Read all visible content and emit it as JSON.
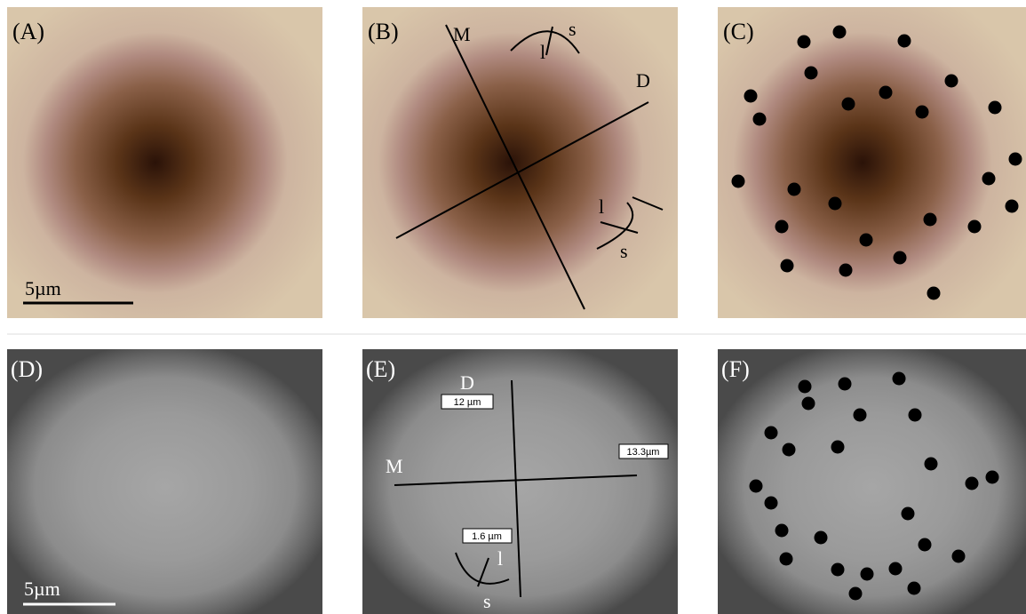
{
  "panels": [
    {
      "label": "(A)",
      "scale_bar": "5µm"
    },
    {
      "label": "(B)",
      "annotations": [
        "M",
        "D",
        "l",
        "s",
        "l",
        "s"
      ]
    },
    {
      "label": "(C)"
    },
    {
      "label": "(D)",
      "scale_bar": "5µm"
    },
    {
      "label": "(E)",
      "annotations": [
        "D",
        "M",
        "l",
        "s"
      ],
      "measurements": [
        "12 µm",
        "13.3µm",
        "1.6 µm"
      ]
    },
    {
      "label": "(F)"
    }
  ]
}
